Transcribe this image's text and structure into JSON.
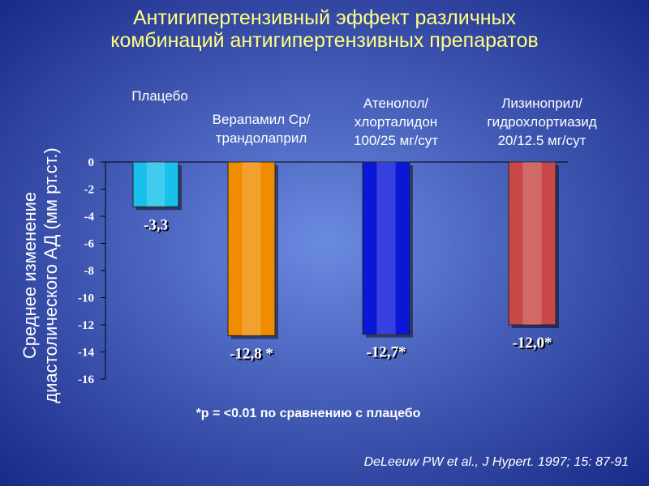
{
  "chart_data": {
    "type": "bar",
    "title": "Антигипертензивный эффект различных\nкомбинаций антигипертензивных препаратов",
    "ylabel": "Среднее изменение\nдиастолического АД (мм рт.ст.)",
    "categories": [
      "Плацебо",
      "Верапамил Ср/\nтрандолаприл",
      "Атенолол/\nхлорталидон\n100/25 мг/сут",
      "Лизиноприл/\nгидрохлортиазид\n20/12.5 мг/сут"
    ],
    "values": [
      -3.3,
      -12.8,
      -12.7,
      -12.0
    ],
    "value_labels": [
      "-3,3",
      "-12,8 *",
      "-12,7*",
      "-12,0*"
    ],
    "colors": [
      "#18c0ea",
      "#f08c00",
      "#0a16d8",
      "#c84848"
    ],
    "ylim": [
      -16,
      0
    ],
    "yticks": [
      0,
      -2,
      -4,
      -6,
      -8,
      -10,
      -12,
      -14,
      -16
    ],
    "footnote": "*p = <0.01 по сравнению с плацебо",
    "source": "DeLeeuw PW et al.,  J Hypert. 1997; 15: 87-91"
  }
}
